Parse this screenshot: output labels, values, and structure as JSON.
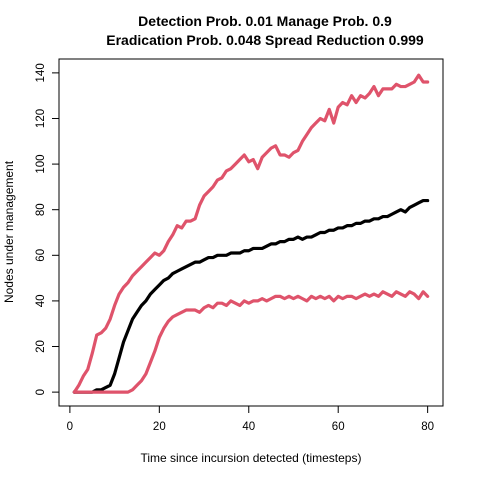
{
  "chart_data": {
    "type": "line",
    "title_lines": [
      "Detection Prob. 0.01 Manage Prob. 0.9",
      "Eradication Prob. 0.048 Spread Reduction 0.999"
    ],
    "xlabel": "Time since incursion detected (timesteps)",
    "ylabel": "Nodes under management",
    "xlim": [
      1,
      80
    ],
    "ylim": [
      0,
      140
    ],
    "x_ticks": [
      0,
      20,
      40,
      60,
      80
    ],
    "y_ticks": [
      0,
      20,
      40,
      60,
      80,
      100,
      120,
      140
    ],
    "grid": false,
    "series": [
      {
        "color": "#DF536B",
        "x": [
          1,
          2,
          3,
          4,
          5,
          6,
          7,
          8,
          9,
          10,
          11,
          12,
          13,
          14,
          15,
          16,
          17,
          18,
          19,
          20,
          21,
          22,
          23,
          24,
          25,
          26,
          27,
          28,
          29,
          30,
          31,
          32,
          33,
          34,
          35,
          36,
          37,
          38,
          39,
          40,
          41,
          42,
          43,
          44,
          45,
          46,
          47,
          48,
          49,
          50,
          51,
          52,
          53,
          54,
          55,
          56,
          57,
          58,
          59,
          60,
          61,
          62,
          63,
          64,
          65,
          66,
          67,
          68,
          69,
          70,
          71,
          72,
          73,
          74,
          75,
          76,
          77,
          78,
          79,
          80
        ],
        "values": [
          0,
          3,
          7,
          10,
          17,
          25,
          26,
          28,
          32,
          38,
          43,
          46,
          48,
          51,
          53,
          55,
          57,
          59,
          61,
          60,
          62,
          66,
          69,
          73,
          72,
          75,
          75,
          76,
          82,
          86,
          88,
          90,
          93,
          94,
          97,
          98,
          100,
          102,
          104,
          101,
          102,
          98,
          103,
          105,
          107,
          108,
          104,
          104,
          103,
          105,
          106,
          110,
          113,
          116,
          118,
          120,
          119,
          124,
          118,
          125,
          127,
          126,
          130,
          127,
          130,
          129,
          131,
          134,
          130,
          133,
          133,
          133,
          135,
          134,
          134,
          135,
          136,
          139,
          136,
          136
        ]
      },
      {
        "color": "#000000",
        "x": [
          1,
          2,
          3,
          4,
          5,
          6,
          7,
          8,
          9,
          10,
          11,
          12,
          13,
          14,
          15,
          16,
          17,
          18,
          19,
          20,
          21,
          22,
          23,
          24,
          25,
          26,
          27,
          28,
          29,
          30,
          31,
          32,
          33,
          34,
          35,
          36,
          37,
          38,
          39,
          40,
          41,
          42,
          43,
          44,
          45,
          46,
          47,
          48,
          49,
          50,
          51,
          52,
          53,
          54,
          55,
          56,
          57,
          58,
          59,
          60,
          61,
          62,
          63,
          64,
          65,
          66,
          67,
          68,
          69,
          70,
          71,
          72,
          73,
          74,
          75,
          76,
          77,
          78,
          79,
          80
        ],
        "values": [
          0,
          0,
          0,
          0,
          0,
          1,
          1,
          2,
          3,
          8,
          15,
          22,
          27,
          32,
          35,
          38,
          40,
          43,
          45,
          47,
          49,
          50,
          52,
          53,
          54,
          55,
          56,
          57,
          57,
          58,
          59,
          59,
          60,
          60,
          60,
          61,
          61,
          61,
          62,
          62,
          63,
          63,
          63,
          64,
          65,
          65,
          66,
          66,
          67,
          67,
          68,
          67,
          68,
          68,
          69,
          70,
          70,
          71,
          71,
          72,
          72,
          73,
          73,
          74,
          74,
          75,
          75,
          76,
          76,
          77,
          77,
          78,
          79,
          80,
          79,
          81,
          82,
          83,
          84,
          84
        ]
      },
      {
        "color": "#DF536B",
        "x": [
          1,
          2,
          3,
          4,
          5,
          6,
          7,
          8,
          9,
          10,
          11,
          12,
          13,
          14,
          15,
          16,
          17,
          18,
          19,
          20,
          21,
          22,
          23,
          24,
          25,
          26,
          27,
          28,
          29,
          30,
          31,
          32,
          33,
          34,
          35,
          36,
          37,
          38,
          39,
          40,
          41,
          42,
          43,
          44,
          45,
          46,
          47,
          48,
          49,
          50,
          51,
          52,
          53,
          54,
          55,
          56,
          57,
          58,
          59,
          60,
          61,
          62,
          63,
          64,
          65,
          66,
          67,
          68,
          69,
          70,
          71,
          72,
          73,
          74,
          75,
          76,
          77,
          78,
          79,
          80
        ],
        "values": [
          0,
          0,
          0,
          0,
          0,
          0,
          0,
          0,
          0,
          0,
          0,
          0,
          0,
          1,
          3,
          5,
          8,
          13,
          18,
          24,
          28,
          31,
          33,
          34,
          35,
          36,
          36,
          36,
          35,
          37,
          38,
          37,
          39,
          39,
          38,
          40,
          39,
          38,
          40,
          39,
          40,
          40,
          41,
          40,
          41,
          42,
          42,
          41,
          42,
          41,
          42,
          41,
          40,
          42,
          41,
          42,
          41,
          42,
          40,
          42,
          41,
          42,
          42,
          41,
          42,
          43,
          42,
          43,
          42,
          44,
          43,
          42,
          44,
          43,
          42,
          44,
          43,
          41,
          44,
          42
        ]
      }
    ]
  }
}
